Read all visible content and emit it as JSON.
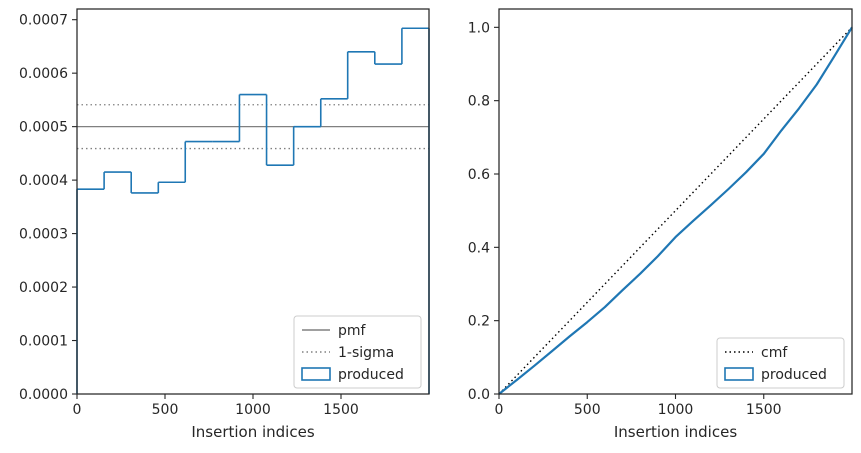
{
  "chart_data": [
    {
      "type": "step",
      "xlabel": "Insertion indices",
      "ylabel": "",
      "xlim": [
        0,
        2000
      ],
      "ylim": [
        0,
        0.00072
      ],
      "xticks": [
        0,
        500,
        1000,
        1500
      ],
      "xtick_labels": [
        "0",
        "500",
        "1000",
        "1500"
      ],
      "yticks": [
        0,
        0.0001,
        0.0002,
        0.0003,
        0.0004,
        0.0005,
        0.0006,
        0.0007
      ],
      "ytick_labels": [
        "0.0000",
        "0.0001",
        "0.0002",
        "0.0003",
        "0.0004",
        "0.0005",
        "0.0006",
        "0.0007"
      ],
      "legend_position": "lower right",
      "grid": false,
      "lines": [
        {
          "name": "pmf",
          "y": 0.0005,
          "color": "#808080",
          "style": "solid"
        },
        {
          "name": "1-sigma",
          "y": [
            0.000459,
            0.000541
          ],
          "color": "#808080",
          "style": "dotted"
        }
      ],
      "histogram": {
        "name": "produced",
        "color": "#1f77b4",
        "bin_edges": [
          0,
          154,
          308,
          462,
          615,
          769,
          923,
          1077,
          1231,
          1385,
          1538,
          1692,
          1846,
          2000
        ],
        "values": [
          0.000383,
          0.000415,
          0.000376,
          0.000396,
          0.000472,
          0.000472,
          0.00056,
          0.000428,
          0.0005,
          0.000552,
          0.00064,
          0.000617,
          0.000684
        ]
      }
    },
    {
      "type": "line",
      "xlabel": "Insertion indices",
      "ylabel": "",
      "xlim": [
        0,
        2000
      ],
      "ylim": [
        0,
        1.05
      ],
      "xticks": [
        0,
        500,
        1000,
        1500
      ],
      "xtick_labels": [
        "0",
        "500",
        "1000",
        "1500"
      ],
      "yticks": [
        0,
        0.2,
        0.4,
        0.6,
        0.8,
        1.0
      ],
      "ytick_labels": [
        "0.0",
        "0.2",
        "0.4",
        "0.6",
        "0.8",
        "1.0"
      ],
      "legend_position": "lower right",
      "grid": false,
      "series": [
        {
          "name": "cmf",
          "color": "#000000",
          "style": "dotted",
          "x": [
            0,
            2000
          ],
          "y": [
            0,
            1.0
          ]
        },
        {
          "name": "produced",
          "color": "#1f77b4",
          "style": "solid",
          "x": [
            0,
            100,
            200,
            300,
            400,
            500,
            600,
            700,
            800,
            900,
            1000,
            1100,
            1200,
            1300,
            1400,
            1500,
            1600,
            1700,
            1800,
            1900,
            2000
          ],
          "y": [
            0,
            0.038,
            0.077,
            0.117,
            0.157,
            0.196,
            0.237,
            0.283,
            0.328,
            0.376,
            0.428,
            0.472,
            0.515,
            0.559,
            0.605,
            0.655,
            0.719,
            0.779,
            0.844,
            0.921,
            1.0
          ]
        }
      ]
    }
  ]
}
